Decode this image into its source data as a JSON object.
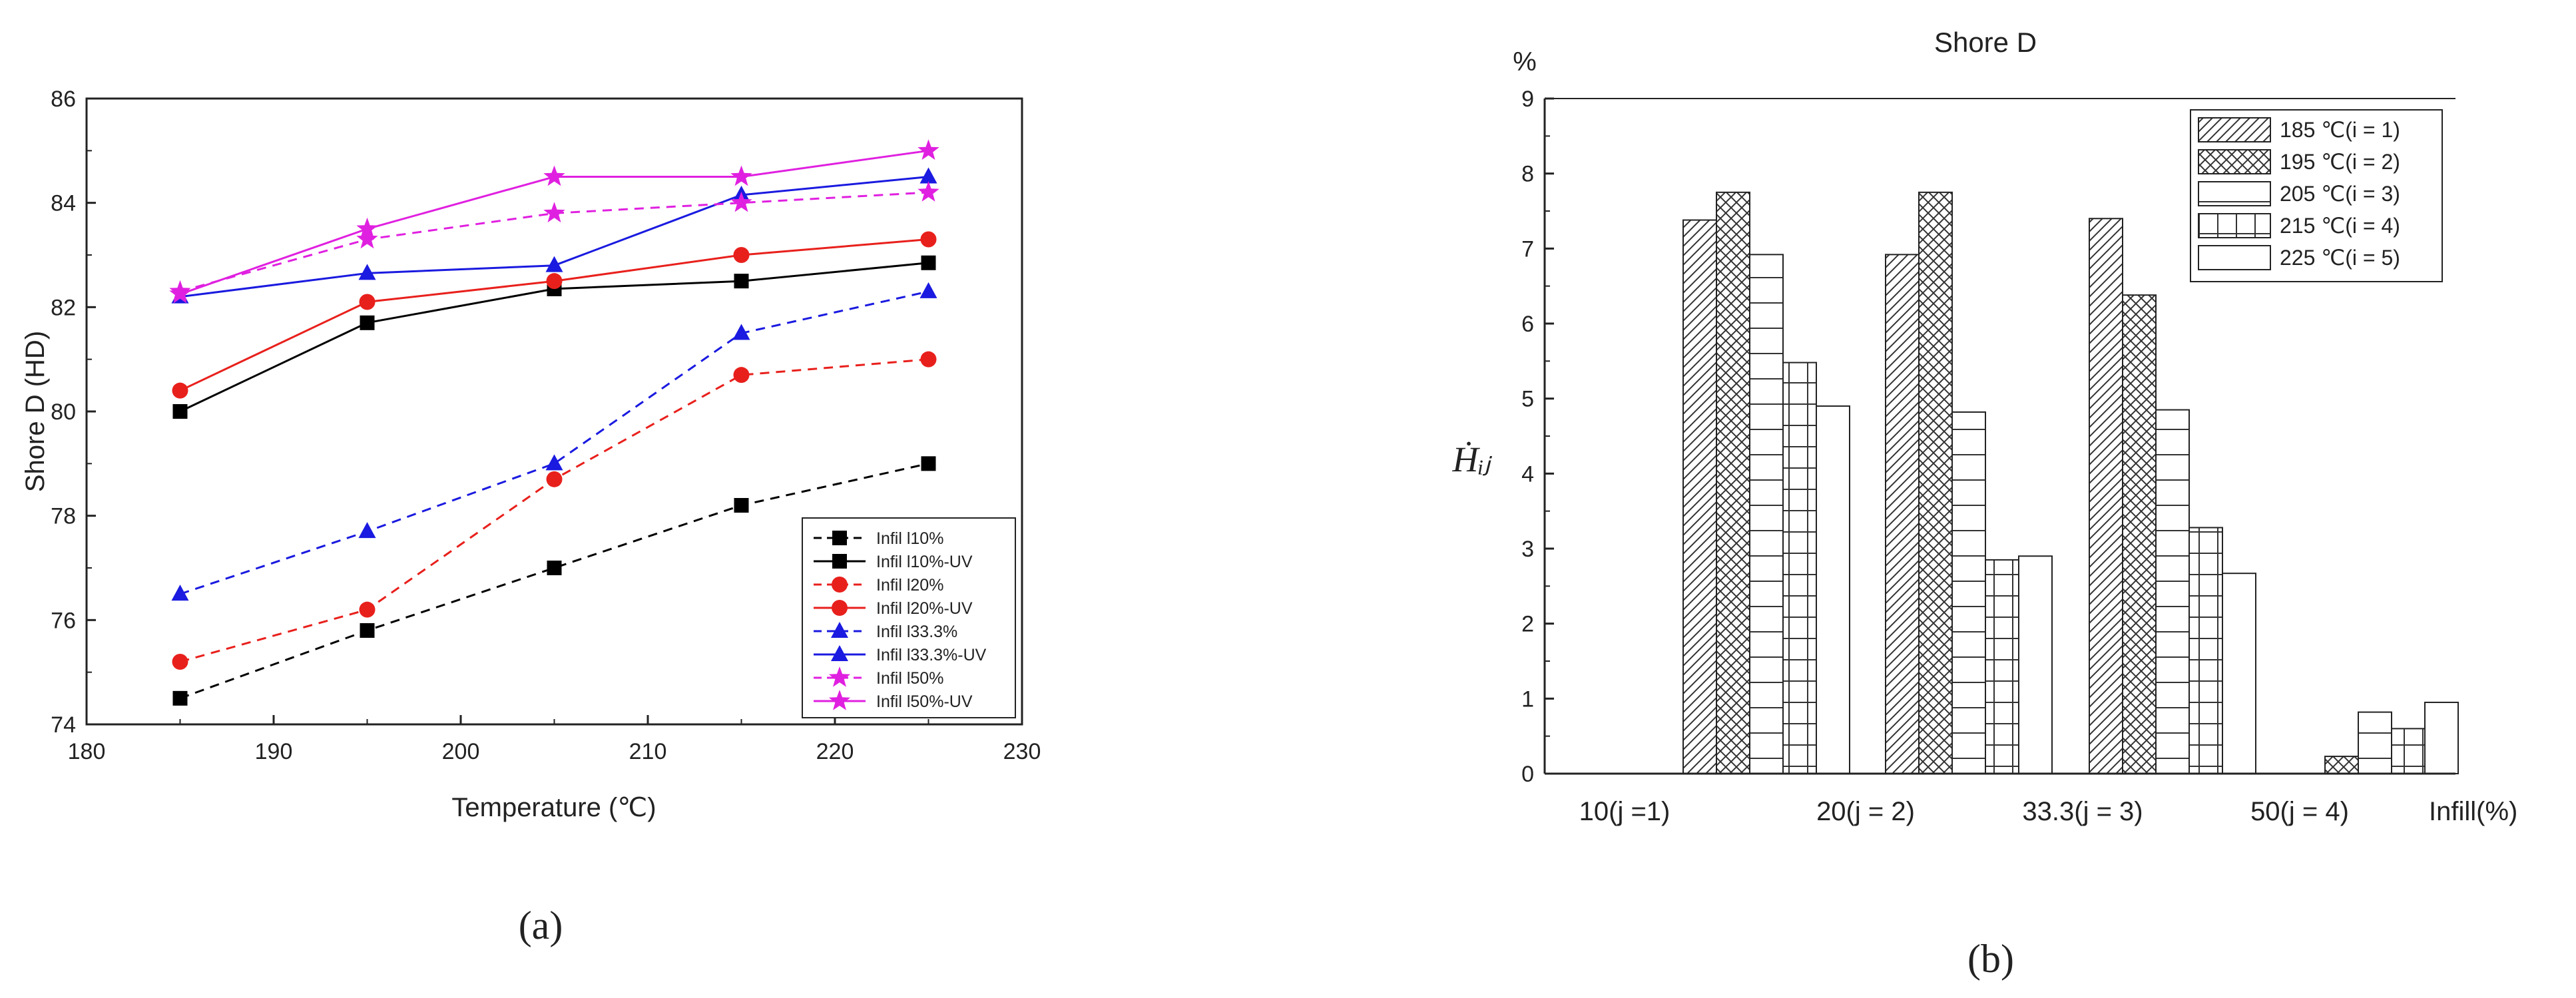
{
  "chart_data": [
    {
      "type": "line",
      "panel_label": "(a)",
      "title": "",
      "xlabel": "Temperature (℃)",
      "ylabel": "Shore D (HD)",
      "xlim": [
        180,
        230
      ],
      "ylim": [
        74,
        86
      ],
      "xticks": [
        180,
        190,
        200,
        210,
        220,
        230
      ],
      "yticks": [
        74,
        76,
        78,
        80,
        82,
        84,
        86
      ],
      "grid": false,
      "legend_position": "lower-right",
      "x": [
        185,
        195,
        205,
        215,
        225
      ],
      "series": [
        {
          "name": "Infil l10%",
          "color": "#000000",
          "dash": true,
          "marker": "square",
          "values": [
            74.5,
            75.8,
            77.0,
            78.2,
            79.0
          ]
        },
        {
          "name": "Infil l10%-UV",
          "color": "#000000",
          "dash": false,
          "marker": "square",
          "values": [
            80.0,
            81.7,
            82.35,
            82.5,
            82.85
          ]
        },
        {
          "name": "Infil l20%",
          "color": "#e8201c",
          "dash": true,
          "marker": "circle",
          "values": [
            75.2,
            76.2,
            78.7,
            80.7,
            81.0
          ]
        },
        {
          "name": "Infil l20%-UV",
          "color": "#e8201c",
          "dash": false,
          "marker": "circle",
          "values": [
            80.4,
            82.1,
            82.5,
            83.0,
            83.3
          ]
        },
        {
          "name": "Infil l33.3%",
          "color": "#1a1ae0",
          "dash": true,
          "marker": "triangle",
          "values": [
            76.5,
            77.7,
            79.0,
            81.5,
            82.3
          ]
        },
        {
          "name": "Infil l33.3%-UV",
          "color": "#1a1ae0",
          "dash": false,
          "marker": "triangle",
          "values": [
            82.2,
            82.65,
            82.8,
            84.15,
            84.5
          ]
        },
        {
          "name": "Infil l50%",
          "color": "#e020e0",
          "dash": true,
          "marker": "star",
          "values": [
            82.3,
            83.3,
            83.8,
            84.0,
            84.2
          ]
        },
        {
          "name": "Infil l50%-UV",
          "color": "#e020e0",
          "dash": false,
          "marker": "star",
          "values": [
            82.25,
            83.5,
            84.5,
            84.5,
            85.0
          ]
        }
      ]
    },
    {
      "type": "bar",
      "panel_label": "(b)",
      "title": "Shore D",
      "ylabel": "Ḣᵢⱼ",
      "yunit": "%",
      "xlabel": "Infill(%)",
      "ylim": [
        0,
        9
      ],
      "yticks": [
        0,
        1,
        2,
        3,
        4,
        5,
        6,
        7,
        8,
        9
      ],
      "grid": false,
      "legend_position": "top-right",
      "categories": [
        "10(j =1)",
        "20(j = 2)",
        "33.3(j = 3)",
        "50(j = 4)"
      ],
      "series": [
        {
          "name": "185 ℃(i = 1)",
          "pattern": "diag",
          "values": [
            7.38,
            6.92,
            7.4,
            0.0
          ]
        },
        {
          "name": "195 ℃(i = 2)",
          "pattern": "cross",
          "values": [
            7.75,
            7.75,
            6.38,
            0.23
          ]
        },
        {
          "name": "205 ℃(i = 3)",
          "pattern": "hlines",
          "values": [
            6.92,
            4.82,
            4.85,
            0.82
          ]
        },
        {
          "name": "215 ℃(i = 4)",
          "pattern": "grid",
          "values": [
            5.48,
            2.85,
            3.28,
            0.6
          ]
        },
        {
          "name": "225 ℃(i = 5)",
          "pattern": "blank",
          "values": [
            4.9,
            2.9,
            2.67,
            0.95
          ]
        }
      ]
    }
  ]
}
